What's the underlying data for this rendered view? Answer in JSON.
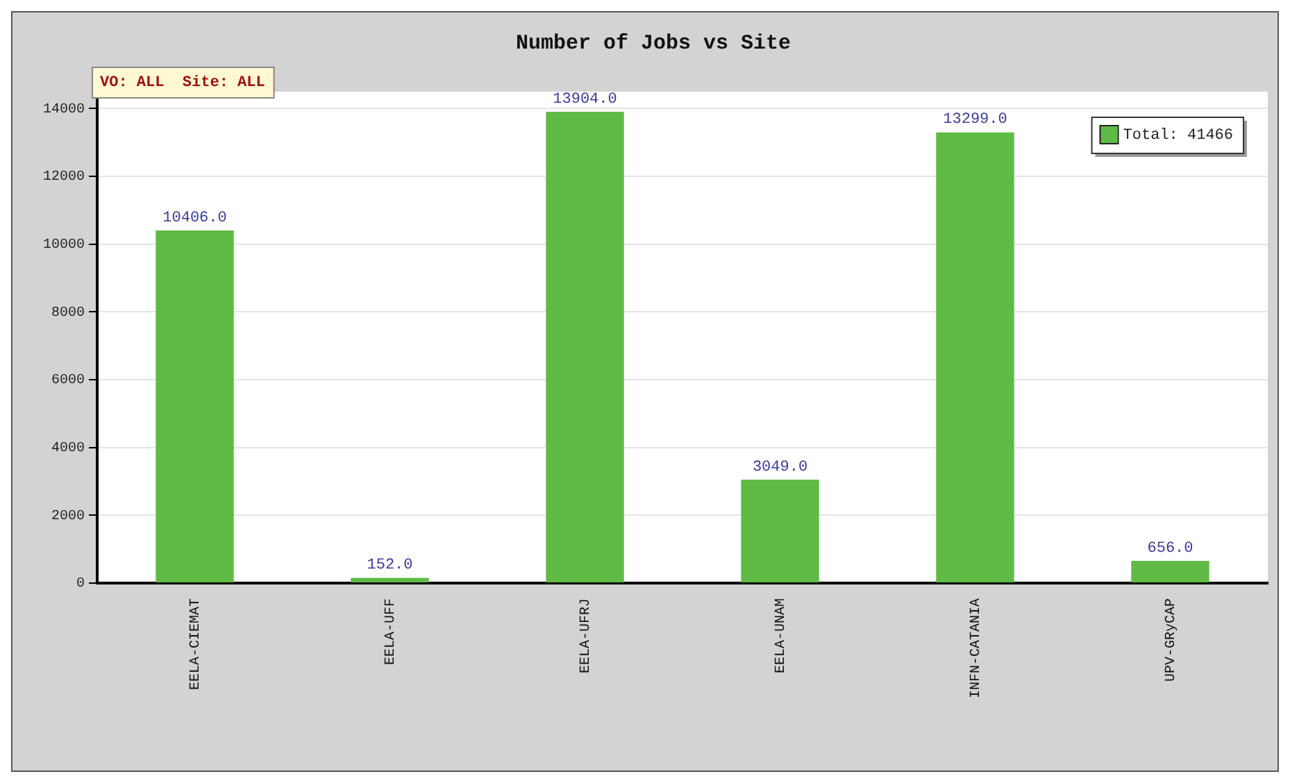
{
  "chart_data": {
    "type": "bar",
    "title": "Number of Jobs vs Site",
    "categories": [
      "EELA-CIEMAT",
      "EELA-UFF",
      "EELA-UFRJ",
      "EELA-UNAM",
      "INFN-CATANIA",
      "UPV-GRyCAP"
    ],
    "series": [
      {
        "name": "Total: 41466",
        "color": "#5fbb46",
        "values": [
          10406,
          152,
          13904,
          3049,
          13299,
          656
        ],
        "value_labels": [
          "10406.0",
          "152.0",
          "13904.0",
          "3049.0",
          "13299.0",
          "656.0"
        ]
      }
    ],
    "annotations": [
      "VO: ALL  Site: ALL"
    ],
    "ylim": [
      0,
      14500
    ],
    "yticks": [
      0,
      2000,
      4000,
      6000,
      8000,
      10000,
      12000,
      14000
    ],
    "grid": "y",
    "legend": "top right"
  }
}
